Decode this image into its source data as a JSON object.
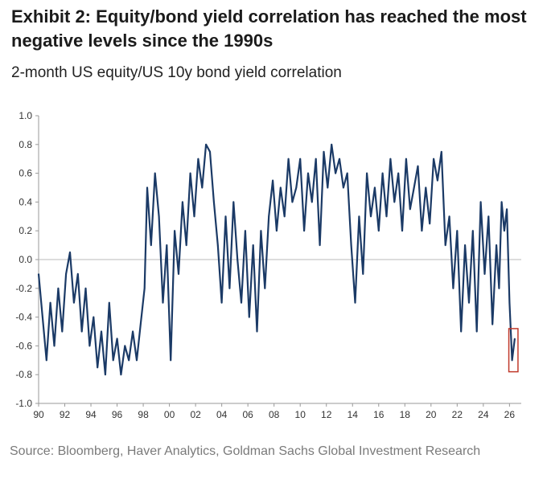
{
  "title": "Exhibit 2: Equity/bond yield correlation has reached the most negative levels since the 1990s",
  "subtitle": "2-month US equity/US 10y bond yield correlation",
  "source": "Source: Bloomberg, Haver Analytics, Goldman Sachs Global Investment Research",
  "colors": {
    "line": "#1b3a66",
    "highlight": "#c0392b",
    "zero_line": "#b8b8b8",
    "axis": "#999999"
  },
  "chart_data": {
    "type": "line",
    "title": "Exhibit 2: Equity/bond yield correlation has reached the most negative levels since the 1990s",
    "subtitle": "2-month US equity/US 10y bond yield correlation",
    "xlabel": "",
    "ylabel": "",
    "xlim": [
      1990,
      2026.9
    ],
    "ylim": [
      -1.0,
      1.0
    ],
    "y_ticks": [
      "1.0",
      "0.8",
      "0.6",
      "0.4",
      "0.2",
      "0.0",
      "-0.2",
      "-0.4",
      "-0.6",
      "-0.8",
      "-1.0"
    ],
    "x_ticks": [
      "90",
      "92",
      "94",
      "96",
      "98",
      "00",
      "02",
      "04",
      "06",
      "08",
      "10",
      "12",
      "14",
      "16",
      "18",
      "20",
      "22",
      "24",
      "26"
    ],
    "grid": false,
    "series": [
      {
        "x": [
          1990.0,
          1990.3,
          1990.6,
          1990.9,
          1991.2,
          1991.5,
          1991.8,
          1992.1,
          1992.4,
          1992.7,
          1993.0,
          1993.3,
          1993.6,
          1993.9,
          1994.2,
          1994.5,
          1994.8,
          1995.1,
          1995.4,
          1995.7,
          1996.0,
          1996.3,
          1996.6,
          1996.9,
          1997.2,
          1997.5,
          1997.8,
          1998.1,
          1998.3,
          1998.6,
          1998.9,
          1999.2,
          1999.5,
          1999.8,
          2000.1,
          2000.4,
          2000.7,
          2001.0,
          2001.3,
          2001.6,
          2001.9,
          2002.2,
          2002.5,
          2002.8,
          2003.1,
          2003.4,
          2003.7,
          2004.0,
          2004.3,
          2004.6,
          2004.9,
          2005.2,
          2005.5,
          2005.8,
          2006.1,
          2006.4,
          2006.7,
          2007.0,
          2007.3,
          2007.6,
          2007.9,
          2008.2,
          2008.5,
          2008.8,
          2009.1,
          2009.4,
          2009.7,
          2010.0,
          2010.3,
          2010.6,
          2010.9,
          2011.2,
          2011.5,
          2011.8,
          2012.1,
          2012.4,
          2012.7,
          2013.0,
          2013.3,
          2013.6,
          2013.9,
          2014.2,
          2014.5,
          2014.8,
          2015.1,
          2015.4,
          2015.7,
          2016.0,
          2016.3,
          2016.6,
          2016.9,
          2017.2,
          2017.5,
          2017.8,
          2018.1,
          2018.4,
          2018.7,
          2019.0,
          2019.3,
          2019.6,
          2019.9,
          2020.2,
          2020.5,
          2020.8,
          2021.1,
          2021.4,
          2021.7,
          2022.0,
          2022.3,
          2022.6,
          2022.9,
          2023.2,
          2023.5,
          2023.8,
          2024.1,
          2024.4,
          2024.7,
          2025.0,
          2025.2,
          2025.4,
          2025.6,
          2025.8,
          2026.0,
          2026.2,
          2026.4
        ],
        "values": [
          -0.1,
          -0.4,
          -0.7,
          -0.3,
          -0.6,
          -0.2,
          -0.5,
          -0.1,
          0.05,
          -0.3,
          -0.1,
          -0.5,
          -0.2,
          -0.6,
          -0.4,
          -0.75,
          -0.5,
          -0.8,
          -0.3,
          -0.7,
          -0.55,
          -0.8,
          -0.6,
          -0.7,
          -0.5,
          -0.7,
          -0.45,
          -0.2,
          0.5,
          0.1,
          0.6,
          0.3,
          -0.3,
          0.1,
          -0.7,
          0.2,
          -0.1,
          0.4,
          0.1,
          0.6,
          0.3,
          0.7,
          0.5,
          0.8,
          0.75,
          0.4,
          0.1,
          -0.3,
          0.3,
          -0.2,
          0.4,
          0.0,
          -0.3,
          0.2,
          -0.4,
          0.1,
          -0.5,
          0.2,
          -0.2,
          0.3,
          0.55,
          0.2,
          0.5,
          0.3,
          0.7,
          0.4,
          0.5,
          0.7,
          0.2,
          0.6,
          0.4,
          0.7,
          0.1,
          0.75,
          0.5,
          0.8,
          0.6,
          0.7,
          0.5,
          0.6,
          0.1,
          -0.3,
          0.3,
          -0.1,
          0.6,
          0.3,
          0.5,
          0.2,
          0.6,
          0.3,
          0.7,
          0.4,
          0.6,
          0.2,
          0.7,
          0.35,
          0.5,
          0.65,
          0.2,
          0.5,
          0.25,
          0.7,
          0.55,
          0.75,
          0.1,
          0.3,
          -0.2,
          0.2,
          -0.5,
          0.1,
          -0.3,
          0.2,
          -0.5,
          0.4,
          -0.1,
          0.3,
          -0.45,
          0.1,
          -0.2,
          0.4,
          0.2,
          0.35,
          -0.3,
          -0.7,
          -0.55
        ]
      }
    ],
    "annotations": [
      {
        "type": "box",
        "x_range": [
          2025.95,
          2026.65
        ],
        "y_range": [
          -0.78,
          -0.48
        ],
        "color": "#c0392b"
      }
    ]
  }
}
